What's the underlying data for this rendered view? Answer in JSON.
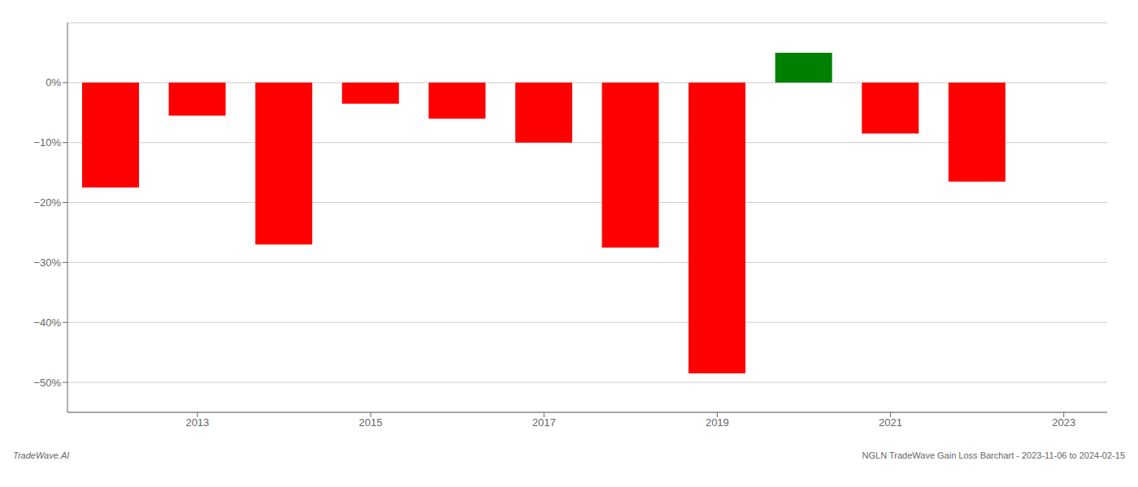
{
  "chart_data": {
    "type": "bar",
    "x": [
      2012,
      2013,
      2014,
      2015,
      2016,
      2017,
      2018,
      2019,
      2020,
      2021,
      2022
    ],
    "values": [
      -17.5,
      -5.5,
      -27.0,
      -3.5,
      -6.0,
      -10.0,
      -27.5,
      -48.5,
      5.0,
      -8.5,
      -16.5
    ],
    "colors": [
      "#ff0000",
      "#ff0000",
      "#ff0000",
      "#ff0000",
      "#ff0000",
      "#ff0000",
      "#ff0000",
      "#ff0000",
      "#008000",
      "#ff0000",
      "#ff0000"
    ],
    "xlim": [
      2011.5,
      2023.5
    ],
    "xticks": [
      2013,
      2015,
      2017,
      2019,
      2021,
      2023
    ],
    "ylim": [
      -55,
      10
    ],
    "yticks": [
      {
        "value": 0,
        "label": "0%"
      },
      {
        "value": -10,
        "label": "−10%"
      },
      {
        "value": -20,
        "label": "−20%"
      },
      {
        "value": -30,
        "label": "−30%"
      },
      {
        "value": -40,
        "label": "−40%"
      },
      {
        "value": -50,
        "label": "−50%"
      }
    ],
    "grid": true,
    "annotations": [
      "TradeWave.AI",
      "NGLN TradeWave Gain Loss Barchart - 2023-11-06 to 2024-02-15"
    ]
  }
}
